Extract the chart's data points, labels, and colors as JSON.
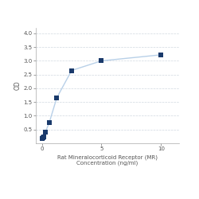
{
  "x": [
    0.0,
    0.078,
    0.156,
    0.313,
    0.625,
    1.25,
    2.5,
    5.0,
    10.0
  ],
  "y": [
    0.187,
    0.21,
    0.235,
    0.42,
    0.75,
    1.65,
    2.65,
    3.0,
    3.22
  ],
  "line_color": "#b8d0e8",
  "marker_color": "#1a3a6b",
  "marker_size": 4,
  "marker_style": "s",
  "xlabel_line1": "Rat Mineralocorticoid Receptor (MR)",
  "xlabel_line2": "Concentration (ng/ml)",
  "ylabel": "OD",
  "xlim": [
    -0.5,
    11.5
  ],
  "ylim": [
    0.0,
    4.2
  ],
  "yticks": [
    0.5,
    1.0,
    1.5,
    2.0,
    2.5,
    3.0,
    3.5,
    4.0
  ],
  "xticks": [
    0,
    5,
    10
  ],
  "grid_color": "#d0d8e0",
  "background_color": "#ffffff",
  "line_width": 1.0,
  "xlabel_fontsize": 5.0,
  "ylabel_fontsize": 5.5,
  "tick_fontsize": 5.0
}
